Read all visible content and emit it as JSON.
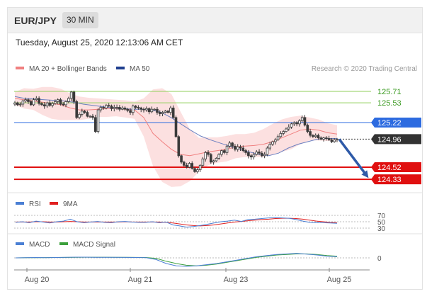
{
  "header": {
    "pair": "EUR/JPY",
    "interval": "30 MIN"
  },
  "datetime": "Tuesday, August 25, 2020 12:13:06 AM CET",
  "credit": "Research © 2020 Trading Central",
  "legends": {
    "main": [
      {
        "label": "MA 20 + Bollinger Bands",
        "color": "#f08080"
      },
      {
        "label": "MA 50",
        "color": "#1f3f8f"
      }
    ],
    "rsi": [
      {
        "label": "RSI",
        "color": "#4a7fd4"
      },
      {
        "label": "9MA",
        "color": "#e02020"
      }
    ],
    "macd": [
      {
        "label": "MACD",
        "color": "#4a7fd4"
      },
      {
        "label": "MACD Signal",
        "color": "#3ca03c"
      }
    ]
  },
  "colors": {
    "candle": "#3a3a3a",
    "bollinger_fill": "#fbd6d6",
    "ma20": "#f08080",
    "ma50": "#6a7fc0",
    "current_label": "#333333",
    "support": "#e01010",
    "resistance_major": "#2d6be0",
    "resistance_minor": "#8fcf5a",
    "arrow": "#2e5aa8"
  },
  "chart_data": [
    {
      "type": "candlestick",
      "title": "EUR/JPY 30 MIN",
      "x_tick_labels": [
        "Aug 20",
        "Aug 21",
        "Aug 23",
        "Aug 25"
      ],
      "y_range": [
        124.2,
        126.0
      ],
      "current_price": 124.96,
      "levels": [
        {
          "value": 125.71,
          "label": "125.71",
          "kind": "resistance-minor"
        },
        {
          "value": 125.53,
          "label": "125.53",
          "kind": "resistance-minor"
        },
        {
          "value": 125.22,
          "label": "125.22",
          "kind": "resistance"
        },
        {
          "value": 124.52,
          "label": "124.52",
          "kind": "support"
        },
        {
          "value": 124.33,
          "label": "124.33",
          "kind": "support"
        }
      ],
      "series": [
        {
          "name": "Close",
          "values": [
            125.53,
            125.5,
            125.51,
            125.56,
            125.58,
            125.55,
            125.5,
            125.58,
            125.6,
            125.52,
            125.5,
            125.48,
            125.53,
            125.49,
            125.52,
            125.55,
            125.58,
            125.51,
            125.5,
            125.55,
            125.6,
            125.7,
            125.55,
            125.3,
            125.35,
            125.4,
            125.38,
            125.32,
            125.32,
            125.3,
            125.08,
            125.42,
            125.46,
            125.45,
            125.49,
            125.48,
            125.44,
            125.46,
            125.46,
            125.43,
            125.45,
            125.43,
            125.41,
            125.38,
            125.48,
            125.46,
            125.45,
            125.43,
            125.42,
            125.44,
            125.39,
            125.43,
            125.43,
            125.38,
            125.36,
            125.38,
            125.4,
            125.38,
            125.45,
            125.3,
            125.0,
            124.7,
            124.6,
            124.55,
            124.52,
            124.58,
            124.5,
            124.45,
            124.48,
            124.55,
            124.65,
            124.75,
            124.72,
            124.6,
            124.62,
            124.66,
            124.72,
            124.78,
            124.75,
            124.85,
            124.9,
            124.85,
            124.8,
            124.84,
            124.82,
            124.78,
            124.75,
            124.7,
            124.68,
            124.72,
            124.76,
            124.74,
            124.7,
            124.72,
            124.82,
            124.88,
            124.92,
            124.95,
            125.0,
            125.05,
            125.08,
            125.12,
            125.15,
            125.2,
            125.22,
            125.2,
            125.25,
            125.3,
            125.18,
            125.08,
            125.02,
            125.0,
            125.02,
            124.98,
            124.96,
            124.98,
            124.97,
            124.95,
            124.92,
            124.95,
            124.96
          ]
        },
        {
          "name": "MA 20",
          "values": [
            125.6,
            125.58,
            125.56,
            125.54,
            125.52,
            125.5,
            125.45,
            125.42,
            125.42,
            125.43,
            125.44,
            125.44,
            125.43,
            125.42,
            125.3,
            125.05,
            124.92,
            124.8,
            124.72,
            124.7,
            124.73,
            124.76,
            124.78,
            124.8,
            124.84,
            124.85,
            124.86,
            124.88,
            124.92,
            124.98,
            125.04,
            125.1,
            125.12,
            125.1,
            125.06,
            125.04
          ]
        },
        {
          "name": "MA 50",
          "values": [
            125.63,
            125.6,
            125.59,
            125.58,
            125.57,
            125.56,
            125.54,
            125.51,
            125.49,
            125.47,
            125.45,
            125.44,
            125.43,
            125.43,
            125.42,
            125.38,
            125.3,
            125.2,
            125.1,
            125.01,
            124.95,
            124.9,
            124.85,
            124.8,
            124.76,
            124.72,
            124.7,
            124.74,
            124.82,
            124.88,
            124.92,
            124.96,
            124.97,
            124.97
          ]
        },
        {
          "name": "Bollinger Upper",
          "values": [
            125.7,
            125.76,
            125.75,
            125.78,
            125.78,
            125.75,
            125.68,
            125.63,
            125.61,
            125.6,
            125.59,
            125.58,
            125.57,
            125.55,
            125.6,
            125.74,
            125.76,
            125.67,
            125.39,
            125.12,
            124.98,
            124.99,
            124.99,
            125.01,
            125.04,
            125.04,
            125.06,
            125.12,
            125.2,
            125.27,
            125.31,
            125.33,
            125.3,
            125.27,
            125.21,
            125.18
          ]
        },
        {
          "name": "Bollinger Lower",
          "values": [
            125.5,
            125.44,
            125.42,
            125.34,
            125.28,
            125.26,
            125.26,
            125.26,
            125.28,
            125.31,
            125.31,
            125.32,
            125.3,
            125.28,
            125.0,
            124.54,
            124.29,
            124.21,
            124.22,
            124.3,
            124.45,
            124.55,
            124.59,
            124.61,
            124.66,
            124.68,
            124.68,
            124.68,
            124.72,
            124.76,
            124.8,
            124.88,
            124.94,
            124.94,
            124.93,
            124.92
          ]
        },
        {
          "name": "Forecast",
          "values": [
            124.96,
            124.33
          ]
        }
      ]
    },
    {
      "type": "line",
      "title": "RSI",
      "y_tick_labels": [
        "70",
        "50",
        "30"
      ],
      "ylim": [
        25,
        75
      ],
      "series": [
        {
          "name": "RSI",
          "values": [
            48,
            50,
            47,
            52,
            49,
            46,
            50,
            52,
            58,
            50,
            47,
            49,
            51,
            48,
            47,
            50,
            51,
            49,
            48,
            48,
            50,
            47,
            49,
            40,
            37,
            33,
            35,
            38,
            42,
            46,
            50,
            52,
            55,
            51,
            57,
            58,
            60,
            62,
            63,
            62,
            61,
            57,
            52,
            48,
            47,
            47,
            46,
            45
          ]
        },
        {
          "name": "9MA",
          "values": [
            49,
            49,
            49,
            50,
            50,
            49,
            49,
            50,
            51,
            50,
            49,
            49,
            49,
            49,
            49,
            49,
            50,
            49,
            49,
            49,
            49,
            49,
            48,
            46,
            43,
            40,
            38,
            37,
            38,
            40,
            43,
            46,
            49,
            51,
            53,
            55,
            57,
            58,
            60,
            61,
            61,
            60,
            58,
            55,
            52,
            50,
            48,
            47
          ]
        }
      ]
    },
    {
      "type": "line",
      "title": "MACD",
      "y_tick_labels": [
        "0"
      ],
      "ylim": [
        -0.2,
        0.1
      ],
      "series": [
        {
          "name": "MACD",
          "values": [
            0.0,
            0.004,
            0.006,
            0.004,
            0.006,
            0.01,
            0.012,
            0.012,
            0.01,
            0.01,
            0.009,
            0.008,
            0.006,
            0.002,
            -0.03,
            -0.1,
            -0.14,
            -0.15,
            -0.14,
            -0.12,
            -0.1,
            -0.07,
            -0.04,
            -0.01,
            0.02,
            0.04,
            0.06,
            0.07,
            0.08,
            0.065,
            0.05,
            0.03,
            0.02
          ]
        },
        {
          "name": "MACD Signal",
          "values": [
            0.0,
            0.002,
            0.004,
            0.005,
            0.006,
            0.008,
            0.01,
            0.011,
            0.011,
            0.011,
            0.01,
            0.009,
            0.008,
            0.006,
            -0.01,
            -0.06,
            -0.1,
            -0.13,
            -0.14,
            -0.13,
            -0.11,
            -0.08,
            -0.05,
            -0.02,
            0.01,
            0.03,
            0.05,
            0.06,
            0.07,
            0.07,
            0.06,
            0.04,
            0.03
          ]
        }
      ]
    }
  ]
}
